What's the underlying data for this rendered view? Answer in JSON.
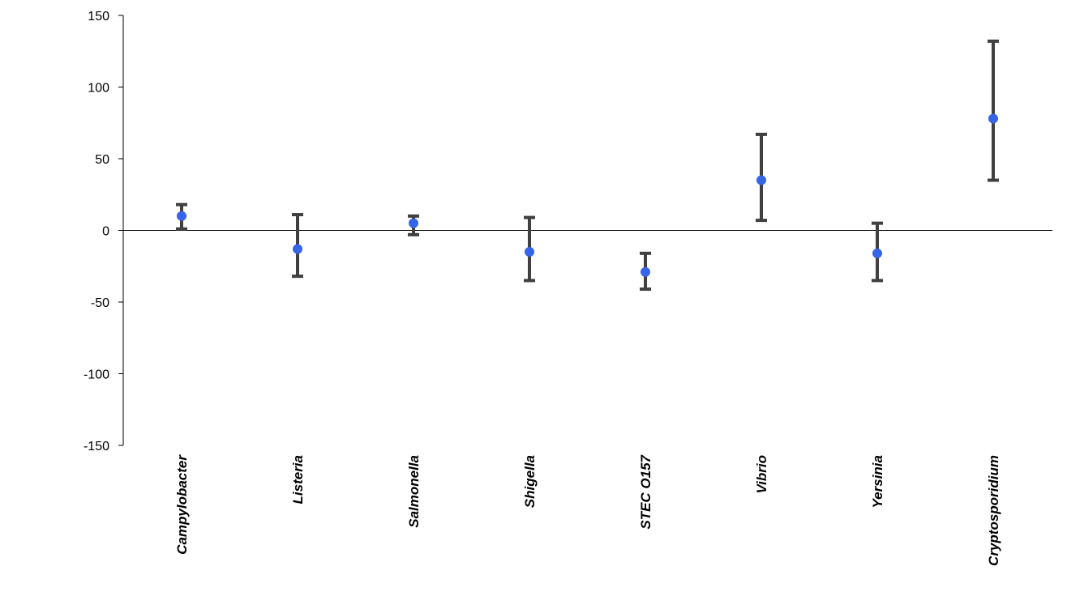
{
  "chart_data": {
    "type": "scatter",
    "categories": [
      "Campylobacter",
      "Listeria",
      "Salmonella",
      "Shigella",
      "STEC O157",
      "Vibrio",
      "Yersinia",
      "Cryptosporidium"
    ],
    "series": [
      {
        "values": [
          10,
          -13,
          5,
          -15,
          -29,
          35,
          -16,
          78
        ],
        "lower": [
          1,
          -32,
          -3,
          -35,
          -41,
          7,
          -35,
          35
        ],
        "upper": [
          18,
          11,
          10,
          9,
          -16,
          67,
          5,
          132
        ]
      }
    ],
    "title": "",
    "xlabel": "",
    "ylabel": "",
    "ylim": [
      -150,
      150
    ],
    "yticks": [
      150,
      100,
      50,
      0,
      -50,
      -100,
      -150
    ],
    "grid": false,
    "legend": "none",
    "colors": {
      "point": "#3565e8",
      "errorbar": "#404040",
      "axis": "#000000"
    }
  }
}
